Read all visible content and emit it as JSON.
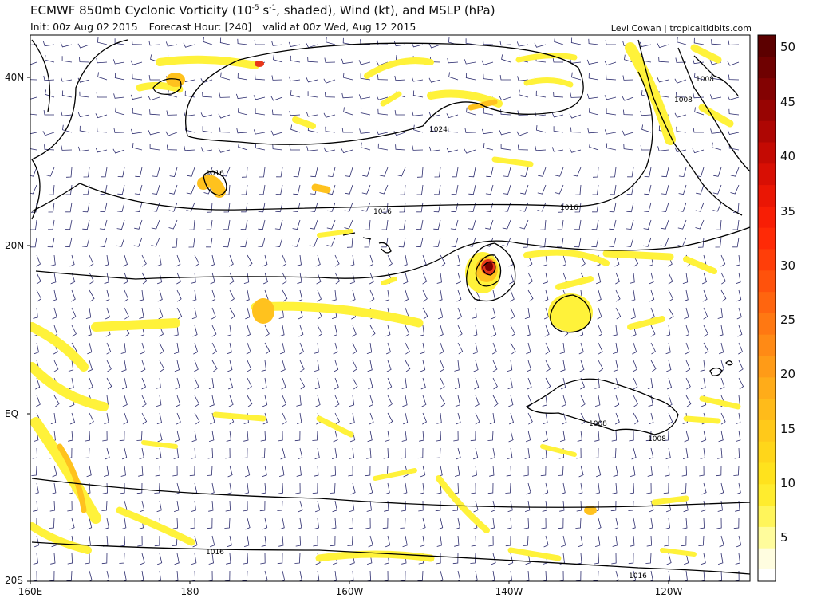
{
  "header": {
    "title_pre": "ECMWF 850mb Cyclonic Vorticity (10",
    "title_exp": "-5",
    "title_unit": " s",
    "title_unit_exp": "-1",
    "title_post": ", shaded), Wind (kt), and MSLP (hPa)",
    "init": "Init: 00z Aug 02 2015",
    "forecast_hour": "Forecast Hour: [240]",
    "valid": "valid at 00z Wed, Aug 12 2015",
    "credit": "Levi Cowan | tropicaltidbits.com"
  },
  "axes": {
    "lat_labels": [
      "40N",
      "20N",
      "EQ",
      "20S"
    ],
    "lon_labels": [
      "160E",
      "180",
      "160W",
      "140W",
      "120W"
    ]
  },
  "isobars": {
    "labels": [
      "1024",
      "1016",
      "1016",
      "1016",
      "1016",
      "1016",
      "1008",
      "1008",
      "1008",
      "1008"
    ]
  },
  "colorbar": {
    "ticks": [
      "50",
      "45",
      "40",
      "35",
      "30",
      "25",
      "20",
      "15",
      "10",
      "5"
    ],
    "colors": [
      "#fffde0",
      "#fffc9c",
      "#fff55b",
      "#ffec2e",
      "#ffe21d",
      "#ffd61a",
      "#ffc91a",
      "#ffbb1a",
      "#ffac19",
      "#ff9b17",
      "#ff8a15",
      "#ff7812",
      "#ff650f",
      "#ff520c",
      "#ff3e09",
      "#ff2a06",
      "#f81e05",
      "#ea1604",
      "#d80f04",
      "#c40a03",
      "#ae0603",
      "#980402",
      "#830202",
      "#6f0101",
      "#5c0000"
    ],
    "white": "#ffffff"
  },
  "colors": {
    "vort_low": "#fff23a",
    "vort_mid": "#ffc21e",
    "vort_high": "#e8371a",
    "vort_core": "#7a0000",
    "wind_barb": "#2c2c6e",
    "contour": "#000000"
  }
}
